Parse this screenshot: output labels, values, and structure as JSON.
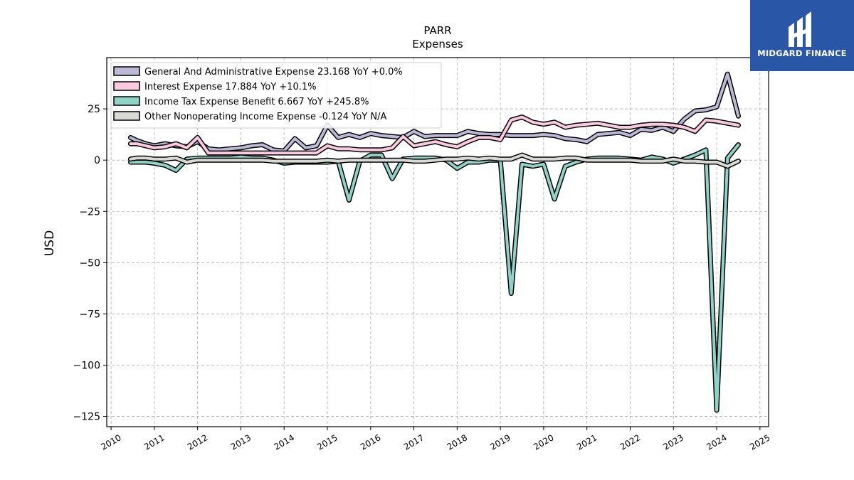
{
  "brand": {
    "logo_text": "MIDGARD FINANCE",
    "logo_color": "#2a56a8"
  },
  "chart_data": {
    "type": "line",
    "title": "PARR",
    "subtitle": "Expenses",
    "ylabel": "USD",
    "xlabel": "",
    "xlim": [
      2009.9,
      2025.2
    ],
    "ylim": [
      -130,
      50
    ],
    "yticks": [
      25,
      0,
      -25,
      -50,
      -75,
      -100,
      -125
    ],
    "ytick_labels": [
      "25",
      "0",
      "−25",
      "−50",
      "−75",
      "−100",
      "−125"
    ],
    "xticks": [
      2010,
      2011,
      2012,
      2013,
      2014,
      2015,
      2016,
      2017,
      2018,
      2019,
      2020,
      2021,
      2022,
      2023,
      2024,
      2025
    ],
    "xtick_labels": [
      "2010",
      "2011",
      "2012",
      "2013",
      "2014",
      "2015",
      "2016",
      "2017",
      "2018",
      "2019",
      "2020",
      "2021",
      "2022",
      "2023",
      "2024",
      "2025"
    ],
    "grid": true,
    "legend_position": "top-left",
    "series": [
      {
        "name": "General And Administrative Expense",
        "legend_label": "General And Administrative Expense  23.168 YoY +0.0%",
        "color": "#bcb8d8",
        "points": [
          [
            2010.45,
            11
          ],
          [
            2010.6,
            9.5
          ],
          [
            2010.8,
            8
          ],
          [
            2011.0,
            7
          ],
          [
            2011.25,
            8
          ],
          [
            2011.5,
            7
          ],
          [
            2011.75,
            6.5
          ],
          [
            2012.0,
            9
          ],
          [
            2012.25,
            5.5
          ],
          [
            2012.5,
            5
          ],
          [
            2012.75,
            5.5
          ],
          [
            2013.0,
            6
          ],
          [
            2013.25,
            7
          ],
          [
            2013.5,
            7.5
          ],
          [
            2013.75,
            5
          ],
          [
            2014.0,
            4.5
          ],
          [
            2014.25,
            10.5
          ],
          [
            2014.5,
            6
          ],
          [
            2014.75,
            7
          ],
          [
            2015.0,
            17
          ],
          [
            2015.25,
            11
          ],
          [
            2015.5,
            12.5
          ],
          [
            2015.75,
            11
          ],
          [
            2016.0,
            13
          ],
          [
            2016.25,
            12
          ],
          [
            2016.5,
            11.5
          ],
          [
            2016.75,
            11
          ],
          [
            2017.0,
            14
          ],
          [
            2017.25,
            11.5
          ],
          [
            2017.5,
            12
          ],
          [
            2017.75,
            12
          ],
          [
            2018.0,
            12
          ],
          [
            2018.25,
            14
          ],
          [
            2018.5,
            13
          ],
          [
            2018.75,
            12.5
          ],
          [
            2019.0,
            12.5
          ],
          [
            2019.25,
            12
          ],
          [
            2019.5,
            12
          ],
          [
            2019.75,
            12
          ],
          [
            2020.0,
            12.5
          ],
          [
            2020.25,
            12
          ],
          [
            2020.5,
            10.5
          ],
          [
            2020.75,
            10
          ],
          [
            2021.0,
            9
          ],
          [
            2021.25,
            12.5
          ],
          [
            2021.5,
            13
          ],
          [
            2021.75,
            13.5
          ],
          [
            2022.0,
            12
          ],
          [
            2022.25,
            15
          ],
          [
            2022.5,
            14.5
          ],
          [
            2022.75,
            16
          ],
          [
            2023.0,
            14
          ],
          [
            2023.25,
            20
          ],
          [
            2023.5,
            24
          ],
          [
            2023.75,
            24.5
          ],
          [
            2024.0,
            26
          ],
          [
            2024.25,
            42
          ],
          [
            2024.5,
            21.5
          ]
        ]
      },
      {
        "name": "Interest Expense",
        "legend_label": "Interest Expense  17.884 YoY +10.1%",
        "color": "#fbc9e0",
        "points": [
          [
            2010.45,
            8
          ],
          [
            2010.6,
            8
          ],
          [
            2010.8,
            7
          ],
          [
            2011.0,
            6
          ],
          [
            2011.25,
            6.5
          ],
          [
            2011.5,
            8
          ],
          [
            2011.75,
            6
          ],
          [
            2012.0,
            11
          ],
          [
            2012.25,
            3.5
          ],
          [
            2012.5,
            3.5
          ],
          [
            2012.75,
            3.5
          ],
          [
            2013.0,
            3.5
          ],
          [
            2013.25,
            3.5
          ],
          [
            2013.5,
            3.5
          ],
          [
            2013.75,
            3.5
          ],
          [
            2014.0,
            3.5
          ],
          [
            2014.25,
            3.5
          ],
          [
            2014.5,
            3.5
          ],
          [
            2014.75,
            3.5
          ],
          [
            2015.0,
            7
          ],
          [
            2015.25,
            5.5
          ],
          [
            2015.5,
            5.5
          ],
          [
            2015.75,
            5
          ],
          [
            2016.0,
            5
          ],
          [
            2016.25,
            5
          ],
          [
            2016.5,
            6
          ],
          [
            2016.75,
            11.5
          ],
          [
            2017.0,
            7
          ],
          [
            2017.25,
            8
          ],
          [
            2017.5,
            9
          ],
          [
            2017.75,
            7.5
          ],
          [
            2018.0,
            6.5
          ],
          [
            2018.25,
            9
          ],
          [
            2018.5,
            11
          ],
          [
            2018.75,
            11
          ],
          [
            2019.0,
            10
          ],
          [
            2019.25,
            19.5
          ],
          [
            2019.5,
            21
          ],
          [
            2019.75,
            18.5
          ],
          [
            2020.0,
            17.5
          ],
          [
            2020.25,
            18.5
          ],
          [
            2020.5,
            16
          ],
          [
            2020.75,
            17
          ],
          [
            2021.0,
            17.5
          ],
          [
            2021.25,
            18
          ],
          [
            2021.5,
            17
          ],
          [
            2021.75,
            16
          ],
          [
            2022.0,
            16
          ],
          [
            2022.25,
            17
          ],
          [
            2022.5,
            17.5
          ],
          [
            2022.75,
            17.5
          ],
          [
            2023.0,
            17
          ],
          [
            2023.25,
            16
          ],
          [
            2023.5,
            14
          ],
          [
            2023.75,
            19.5
          ],
          [
            2024.0,
            19
          ],
          [
            2024.25,
            18
          ],
          [
            2024.5,
            17
          ]
        ]
      },
      {
        "name": "Income Tax Expense Benefit",
        "legend_label": "Income Tax Expense Benefit  6.667 YoY +245.8%",
        "color": "#8dd3c7",
        "points": [
          [
            2010.45,
            -1
          ],
          [
            2010.6,
            -1
          ],
          [
            2010.8,
            -1
          ],
          [
            2011.0,
            -1.5
          ],
          [
            2011.25,
            -2.5
          ],
          [
            2011.5,
            -5
          ],
          [
            2011.75,
            0.5
          ],
          [
            2012.0,
            1
          ],
          [
            2012.25,
            1
          ],
          [
            2012.5,
            1
          ],
          [
            2012.75,
            1
          ],
          [
            2013.0,
            1.5
          ],
          [
            2013.25,
            1
          ],
          [
            2013.5,
            1
          ],
          [
            2013.75,
            0
          ],
          [
            2014.0,
            -1.5
          ],
          [
            2014.25,
            -1
          ],
          [
            2014.5,
            -1
          ],
          [
            2014.75,
            -1
          ],
          [
            2015.0,
            -1
          ],
          [
            2015.25,
            -0.5
          ],
          [
            2015.5,
            -19.5
          ],
          [
            2015.75,
            -0.5
          ],
          [
            2016.0,
            2.5
          ],
          [
            2016.25,
            2.5
          ],
          [
            2016.5,
            -9
          ],
          [
            2016.75,
            0.5
          ],
          [
            2017.0,
            1
          ],
          [
            2017.25,
            1
          ],
          [
            2017.5,
            1
          ],
          [
            2017.75,
            0
          ],
          [
            2018.0,
            -4
          ],
          [
            2018.25,
            -1
          ],
          [
            2018.5,
            -1
          ],
          [
            2018.75,
            0
          ],
          [
            2019.0,
            0
          ],
          [
            2019.25,
            -65
          ],
          [
            2019.5,
            -2
          ],
          [
            2019.75,
            -3
          ],
          [
            2020.0,
            -2
          ],
          [
            2020.25,
            -19
          ],
          [
            2020.5,
            -3
          ],
          [
            2020.75,
            -1
          ],
          [
            2021.0,
            0.5
          ],
          [
            2021.25,
            1
          ],
          [
            2021.5,
            1
          ],
          [
            2021.75,
            1
          ],
          [
            2022.0,
            0.5
          ],
          [
            2022.25,
            0
          ],
          [
            2022.5,
            1.5
          ],
          [
            2022.75,
            0.5
          ],
          [
            2023.0,
            -1.5
          ],
          [
            2023.25,
            0.5
          ],
          [
            2023.5,
            2.5
          ],
          [
            2023.75,
            5
          ],
          [
            2024.0,
            -122
          ],
          [
            2024.25,
            1
          ],
          [
            2024.5,
            7.5
          ]
        ]
      },
      {
        "name": "Other Nonoperating Income Expense",
        "legend_label": "Other Nonoperating Income Expense  -0.124 YoY N/A",
        "color": "#d9d9d6",
        "points": [
          [
            2010.45,
            0.5
          ],
          [
            2010.6,
            1
          ],
          [
            2010.8,
            1
          ],
          [
            2011.0,
            0.5
          ],
          [
            2011.25,
            0.5
          ],
          [
            2011.5,
            1
          ],
          [
            2011.75,
            -1
          ],
          [
            2012.0,
            0
          ],
          [
            2012.25,
            0
          ],
          [
            2012.5,
            0
          ],
          [
            2012.75,
            0
          ],
          [
            2013.0,
            0
          ],
          [
            2013.25,
            0
          ],
          [
            2013.5,
            0
          ],
          [
            2013.75,
            -0.5
          ],
          [
            2014.0,
            -0.5
          ],
          [
            2014.25,
            -0.5
          ],
          [
            2014.5,
            -0.5
          ],
          [
            2014.75,
            -0.5
          ],
          [
            2015.0,
            0
          ],
          [
            2015.25,
            -0.5
          ],
          [
            2015.5,
            0
          ],
          [
            2015.75,
            0
          ],
          [
            2016.0,
            0
          ],
          [
            2016.25,
            0
          ],
          [
            2016.5,
            0
          ],
          [
            2016.75,
            0
          ],
          [
            2017.0,
            -0.5
          ],
          [
            2017.25,
            -0.5
          ],
          [
            2017.5,
            0
          ],
          [
            2017.75,
            0.5
          ],
          [
            2018.0,
            0.5
          ],
          [
            2018.25,
            1
          ],
          [
            2018.5,
            0.5
          ],
          [
            2018.75,
            1
          ],
          [
            2019.0,
            0.5
          ],
          [
            2019.25,
            0.5
          ],
          [
            2019.5,
            2.5
          ],
          [
            2019.75,
            0.5
          ],
          [
            2020.0,
            0.5
          ],
          [
            2020.25,
            0.5
          ],
          [
            2020.5,
            1
          ],
          [
            2020.75,
            1
          ],
          [
            2021.0,
            0
          ],
          [
            2021.25,
            0
          ],
          [
            2021.5,
            0
          ],
          [
            2021.75,
            0
          ],
          [
            2022.0,
            0
          ],
          [
            2022.25,
            -0.5
          ],
          [
            2022.5,
            -0.5
          ],
          [
            2022.75,
            -0.5
          ],
          [
            2023.0,
            0.5
          ],
          [
            2023.25,
            -0.5
          ],
          [
            2023.5,
            -0.5
          ],
          [
            2023.75,
            -1
          ],
          [
            2024.0,
            -1
          ],
          [
            2024.25,
            -3
          ],
          [
            2024.5,
            -0.5
          ]
        ]
      }
    ]
  }
}
